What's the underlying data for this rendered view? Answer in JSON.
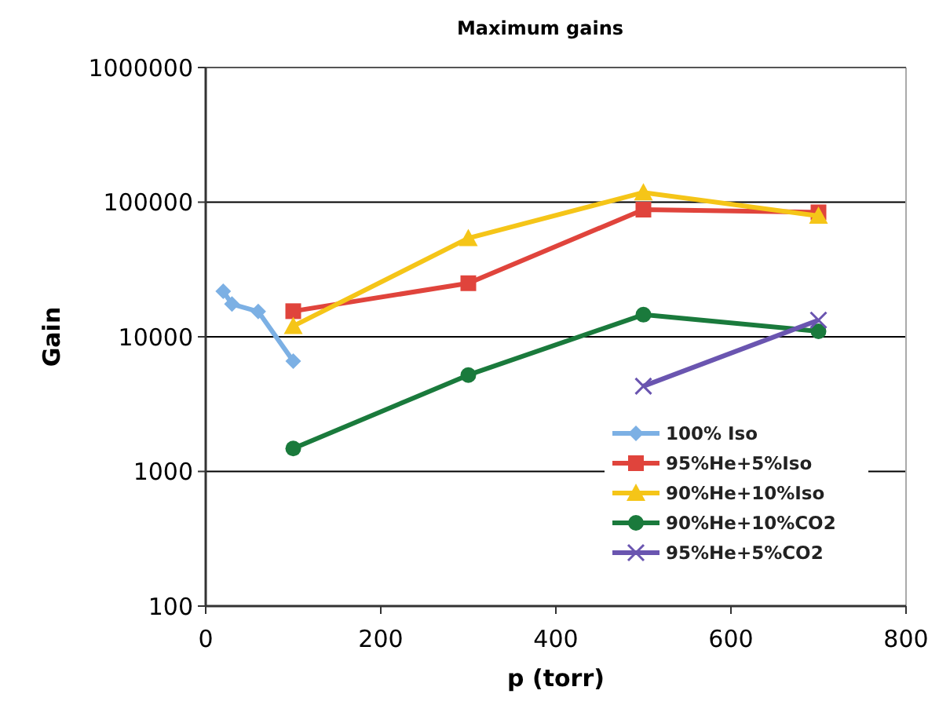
{
  "chart_data": {
    "type": "line",
    "title": "Maximum gains",
    "xlabel": "p (torr)",
    "ylabel": "Gain",
    "log": "y",
    "xlim": [
      0,
      800
    ],
    "xticks": [
      0,
      200,
      400,
      600,
      800
    ],
    "ylim": [
      100,
      1000000
    ],
    "yticks": [
      100,
      1000,
      10000,
      100000,
      1000000
    ],
    "grid": "y",
    "legend": "bottom right",
    "series": [
      {
        "name": "100% Iso",
        "color": "#7cb0e4",
        "marker": "diamond",
        "x": [
          20,
          30,
          60,
          100
        ],
        "values": [
          21800,
          17500,
          15400,
          6600
        ]
      },
      {
        "name": "95%He+5%Iso",
        "color": "#e0443c",
        "marker": "square",
        "x": [
          100,
          300,
          500,
          700
        ],
        "values": [
          15500,
          25000,
          88000,
          84000
        ]
      },
      {
        "name": "90%He+10%Iso",
        "color": "#f5c518",
        "marker": "triangle",
        "x": [
          100,
          300,
          500,
          700
        ],
        "values": [
          12000,
          54000,
          118000,
          79000
        ]
      },
      {
        "name": "90%He+10%CO2",
        "color": "#1a7a3c",
        "marker": "circle",
        "x": [
          100,
          300,
          500,
          700
        ],
        "values": [
          1480,
          5200,
          14600,
          11000
        ]
      },
      {
        "name": "95%He+5%CO2",
        "color": "#6a55b0",
        "marker": "cross",
        "x": [
          500,
          700
        ],
        "values": [
          4300,
          13300
        ]
      }
    ]
  }
}
